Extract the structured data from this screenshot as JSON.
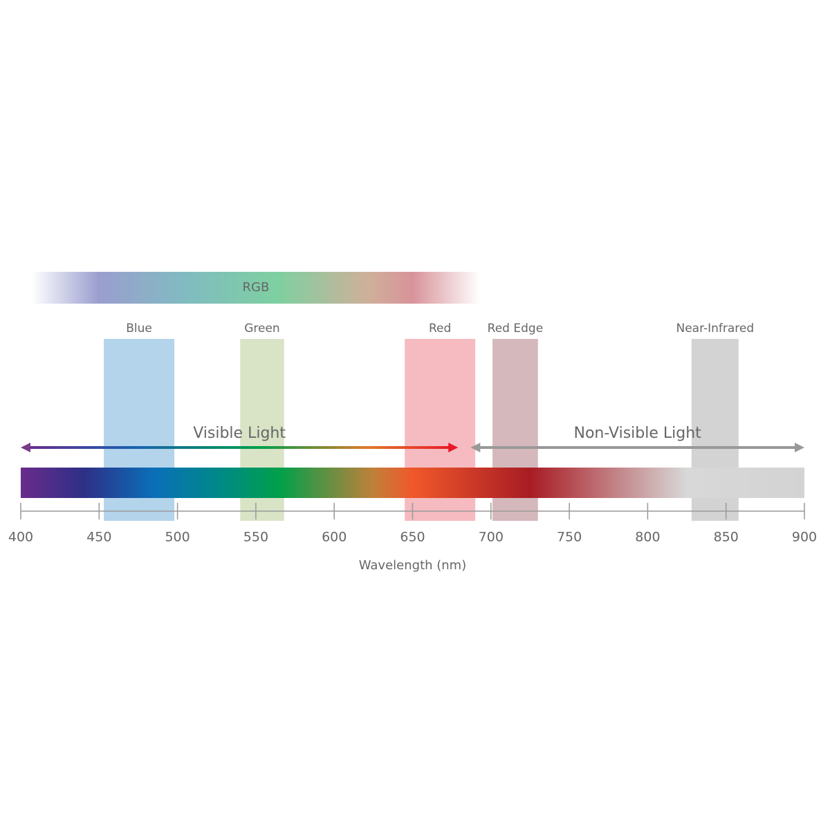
{
  "chart_data": {
    "type": "spectrum",
    "xlabel": "Wavelength (nm)",
    "xlim": [
      400,
      900
    ],
    "xticks": [
      400,
      450,
      500,
      550,
      600,
      650,
      700,
      750,
      800,
      850,
      900
    ],
    "rgb": {
      "name": "RGB",
      "values": [
        407,
        693
      ]
    },
    "bands": [
      {
        "name": "Blue",
        "color": "#b3d4ea",
        "values": [
          453,
          498
        ]
      },
      {
        "name": "Green",
        "color": "#d9e3c6",
        "values": [
          540,
          568
        ]
      },
      {
        "name": "Red",
        "color": "#f5bbc0",
        "values": [
          645,
          690
        ]
      },
      {
        "name": "Red Edge",
        "color": "#d5b8bc",
        "values": [
          701,
          730
        ]
      },
      {
        "name": "Near-Infrared",
        "color": "#d3d3d3",
        "values": [
          828,
          858
        ]
      }
    ],
    "ranges": [
      {
        "name": "Visible Light",
        "values": [
          400,
          679
        ]
      },
      {
        "name": "Non-Visible Light",
        "color": "#999999",
        "values": [
          687,
          900
        ]
      }
    ]
  }
}
